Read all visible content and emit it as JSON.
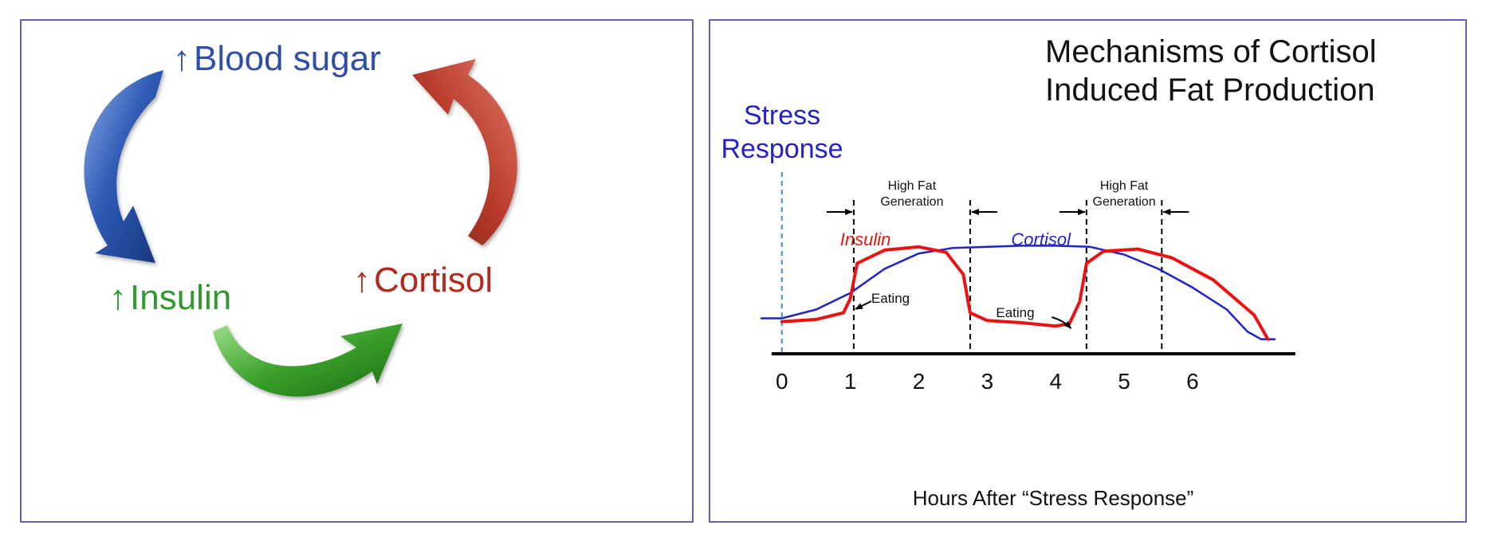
{
  "cycle": {
    "blood_sugar": {
      "arrow": "↑",
      "label": "Blood sugar"
    },
    "insulin": {
      "arrow": "↑",
      "label": "Insulin"
    },
    "cortisol": {
      "arrow": "↑",
      "label": "Cortisol"
    },
    "colors": {
      "blue": "#2f5bb5",
      "green": "#2e9a2e",
      "red": "#c0392b"
    }
  },
  "chart_data": {
    "type": "line",
    "title_line1": "Mechanisms of Cortisol",
    "title_line2": "Induced Fat Production",
    "stress_label_line1": "Stress",
    "stress_label_line2": "Response",
    "xlabel": "Hours After “Stress Response”",
    "x_ticks": [
      "0",
      "1",
      "2",
      "3",
      "4",
      "5",
      "6"
    ],
    "xlim": [
      -0.3,
      7.5
    ],
    "ylim": [
      0,
      1
    ],
    "series": [
      {
        "name": "Cortisol",
        "color": "#2222cc",
        "points": [
          [
            -0.3,
            0.25
          ],
          [
            0,
            0.25
          ],
          [
            0.5,
            0.33
          ],
          [
            1,
            0.48
          ],
          [
            1.5,
            0.7
          ],
          [
            2,
            0.84
          ],
          [
            2.5,
            0.89
          ],
          [
            3,
            0.9
          ],
          [
            3.5,
            0.91
          ],
          [
            4,
            0.91
          ],
          [
            4.5,
            0.9
          ],
          [
            5,
            0.83
          ],
          [
            5.5,
            0.7
          ],
          [
            6,
            0.53
          ],
          [
            6.5,
            0.33
          ],
          [
            6.8,
            0.13
          ],
          [
            7,
            0.06
          ],
          [
            7.2,
            0.06
          ]
        ]
      },
      {
        "name": "Insulin",
        "color": "#ee1111",
        "points": [
          [
            0,
            0.22
          ],
          [
            0.5,
            0.24
          ],
          [
            0.9,
            0.3
          ],
          [
            1,
            0.43
          ],
          [
            1.1,
            0.75
          ],
          [
            1.5,
            0.87
          ],
          [
            2,
            0.9
          ],
          [
            2.4,
            0.85
          ],
          [
            2.65,
            0.65
          ],
          [
            2.75,
            0.3
          ],
          [
            3,
            0.23
          ],
          [
            3.5,
            0.21
          ],
          [
            4,
            0.18
          ],
          [
            4.2,
            0.2
          ],
          [
            4.35,
            0.4
          ],
          [
            4.45,
            0.75
          ],
          [
            4.7,
            0.86
          ],
          [
            5.2,
            0.88
          ],
          [
            5.7,
            0.8
          ],
          [
            6.3,
            0.6
          ],
          [
            6.9,
            0.28
          ],
          [
            7.1,
            0.06
          ]
        ]
      }
    ],
    "dashed_lines_x": [
      1.05,
      2.75,
      4.45,
      5.55
    ],
    "stress_line_x": 0,
    "annotations": [
      {
        "text_line1": "High Fat",
        "text_line2": "Generation",
        "from_x": 1.05,
        "to_x": 2.75
      },
      {
        "text_line1": "High Fat",
        "text_line2": "Generation",
        "from_x": 4.45,
        "to_x": 5.55
      }
    ],
    "eating_labels": [
      {
        "text": "Eating",
        "at_x": 1.05
      },
      {
        "text": "Eating",
        "at_x": 4.2
      }
    ]
  }
}
